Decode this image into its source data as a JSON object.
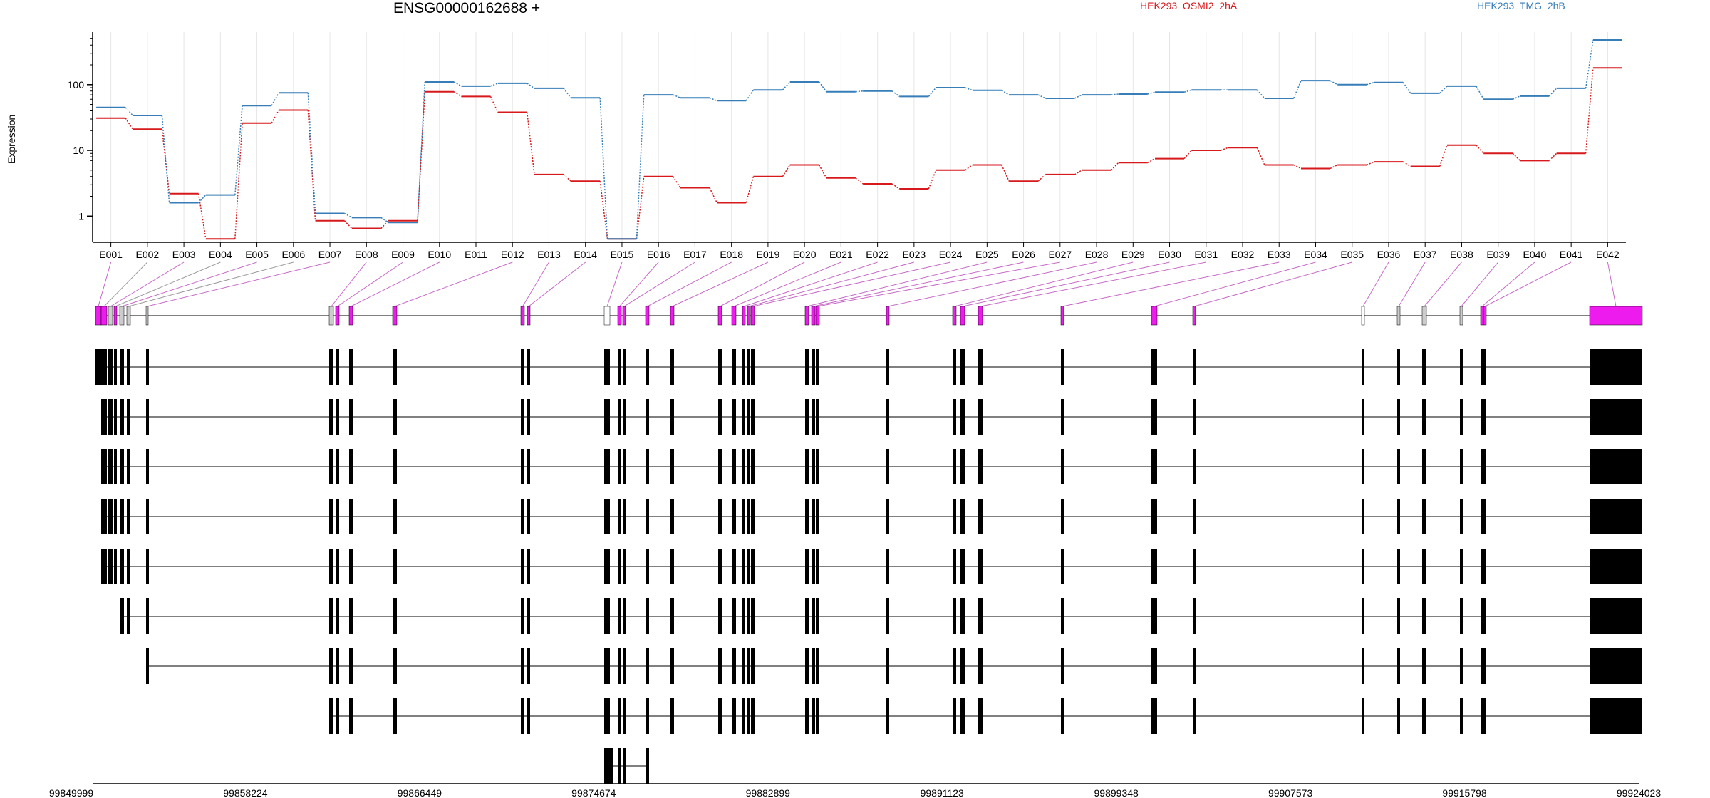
{
  "gene_title": "ENSG00000162688 +",
  "chart_data": {
    "type": "line",
    "ylabel": "Expression",
    "yscale": "log",
    "yticks": [
      1,
      10,
      100
    ],
    "ylim": [
      0.4,
      600
    ],
    "categories": [
      "E001",
      "E002",
      "E003",
      "E004",
      "E005",
      "E006",
      "E007",
      "E008",
      "E009",
      "E010",
      "E011",
      "E012",
      "E013",
      "E014",
      "E015",
      "E016",
      "E017",
      "E018",
      "E019",
      "E020",
      "E021",
      "E022",
      "E023",
      "E024",
      "E025",
      "E026",
      "E027",
      "E028",
      "E029",
      "E030",
      "E031",
      "E032",
      "E033",
      "E034",
      "E035",
      "E036",
      "E037",
      "E038",
      "E039",
      "E040",
      "E041",
      "E042"
    ],
    "series": [
      {
        "name": "HEK293_OSMI2_2hA",
        "color": "#d7191c",
        "values": [
          31,
          21,
          2.2,
          0.45,
          26,
          41,
          0.85,
          0.65,
          0.85,
          78,
          66,
          38,
          4.3,
          3.4,
          0.45,
          4.0,
          2.7,
          1.6,
          4.0,
          6.0,
          3.8,
          3.1,
          2.6,
          5.0,
          6.0,
          3.4,
          4.3,
          5.0,
          6.5,
          7.5,
          10,
          11,
          6.0,
          5.3,
          6.0,
          6.7,
          5.7,
          12,
          9.0,
          7.0,
          9.0,
          180
        ]
      },
      {
        "name": "HEK293_TMG_2hB",
        "color": "#377eb8",
        "values": [
          45,
          34,
          1.6,
          2.1,
          48,
          75,
          1.1,
          0.95,
          0.8,
          110,
          95,
          105,
          88,
          63,
          0.45,
          70,
          63,
          57,
          83,
          110,
          78,
          80,
          66,
          90,
          82,
          70,
          62,
          70,
          72,
          77,
          83,
          83,
          62,
          115,
          100,
          108,
          74,
          95,
          60,
          67,
          88,
          480
        ]
      }
    ],
    "genomic_axis": {
      "ticks": [
        "99849999",
        "99858224",
        "99866449",
        "99874674",
        "99882899",
        "99891123",
        "99899348",
        "99907573",
        "99915798",
        "99924023"
      ]
    },
    "exon_colors": {
      "significant": "#ee1bee",
      "tested": "#cccccc",
      "not_tested": "#ffffff",
      "transcript": "#000000"
    }
  }
}
